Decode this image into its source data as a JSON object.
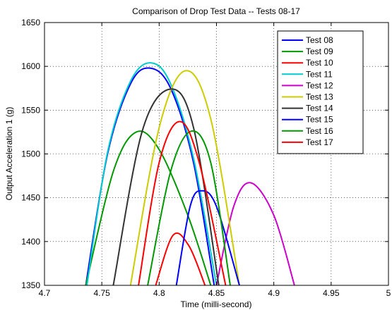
{
  "chart_data": {
    "type": "line",
    "title": "Comparison of Drop Test Data -- Tests 08-17",
    "xlabel": "Time (milli-second)",
    "ylabel": "Output Acceleration 1 (g)",
    "xlim": [
      4.7,
      5.0
    ],
    "ylim": [
      1350,
      1650
    ],
    "xticks": [
      "4.7",
      "4.75",
      "4.8",
      "4.85",
      "4.9",
      "4.95",
      "5"
    ],
    "xtick_values": [
      4.7,
      4.75,
      4.8,
      4.85,
      4.9,
      4.95,
      5.0
    ],
    "yticks": [
      "1350",
      "1400",
      "1450",
      "1500",
      "1550",
      "1600",
      "1650"
    ],
    "ytick_values": [
      1350,
      1400,
      1450,
      1500,
      1550,
      1600,
      1650
    ],
    "grid": true,
    "legend_position": "top-right",
    "series": [
      {
        "name": "Test 08",
        "color": "#0000ff",
        "x": [
          4.736,
          4.755,
          4.775,
          4.792,
          4.81,
          4.83,
          4.848
        ],
        "y": [
          1350,
          1500,
          1580,
          1598,
          1575,
          1490,
          1350
        ]
      },
      {
        "name": "Test 09",
        "color": "#009900",
        "x": [
          4.736,
          4.76,
          4.78,
          4.8,
          4.825,
          4.845
        ],
        "y": [
          1350,
          1480,
          1525,
          1505,
          1430,
          1350
        ]
      },
      {
        "name": "Test 10",
        "color": "#ff0000",
        "x": [
          4.797,
          4.812,
          4.826,
          4.84
        ],
        "y": [
          1350,
          1407,
          1395,
          1350
        ]
      },
      {
        "name": "Test 11",
        "color": "#00cccc",
        "x": [
          4.737,
          4.755,
          4.775,
          4.793,
          4.81,
          4.83,
          4.85
        ],
        "y": [
          1350,
          1502,
          1583,
          1604,
          1580,
          1495,
          1350
        ]
      },
      {
        "name": "Test 12",
        "color": "#cc00cc",
        "x": [
          4.85,
          4.865,
          4.88,
          4.9,
          4.918
        ],
        "y": [
          1350,
          1440,
          1467,
          1430,
          1350
        ]
      },
      {
        "name": "Test 13",
        "color": "#cccc00",
        "x": [
          4.775,
          4.8,
          4.823,
          4.845,
          4.87
        ],
        "y": [
          1350,
          1530,
          1595,
          1540,
          1350
        ]
      },
      {
        "name": "Test 14",
        "color": "#333333",
        "x": [
          4.76,
          4.785,
          4.81,
          4.83,
          4.852
        ],
        "y": [
          1350,
          1525,
          1574,
          1530,
          1350
        ]
      },
      {
        "name": "Test 15",
        "color": "#0000ff",
        "x": [
          4.815,
          4.827,
          4.837,
          4.85,
          4.87
        ],
        "y": [
          1350,
          1440,
          1458,
          1440,
          1350
        ]
      },
      {
        "name": "Test 16",
        "color": "#009900",
        "x": [
          4.79,
          4.81,
          4.828,
          4.845,
          4.862
        ],
        "y": [
          1350,
          1480,
          1526,
          1490,
          1350
        ]
      },
      {
        "name": "Test 17",
        "color": "#ff0000",
        "x": [
          4.782,
          4.8,
          4.818,
          4.835,
          4.858
        ],
        "y": [
          1350,
          1490,
          1537,
          1490,
          1350
        ]
      }
    ]
  }
}
